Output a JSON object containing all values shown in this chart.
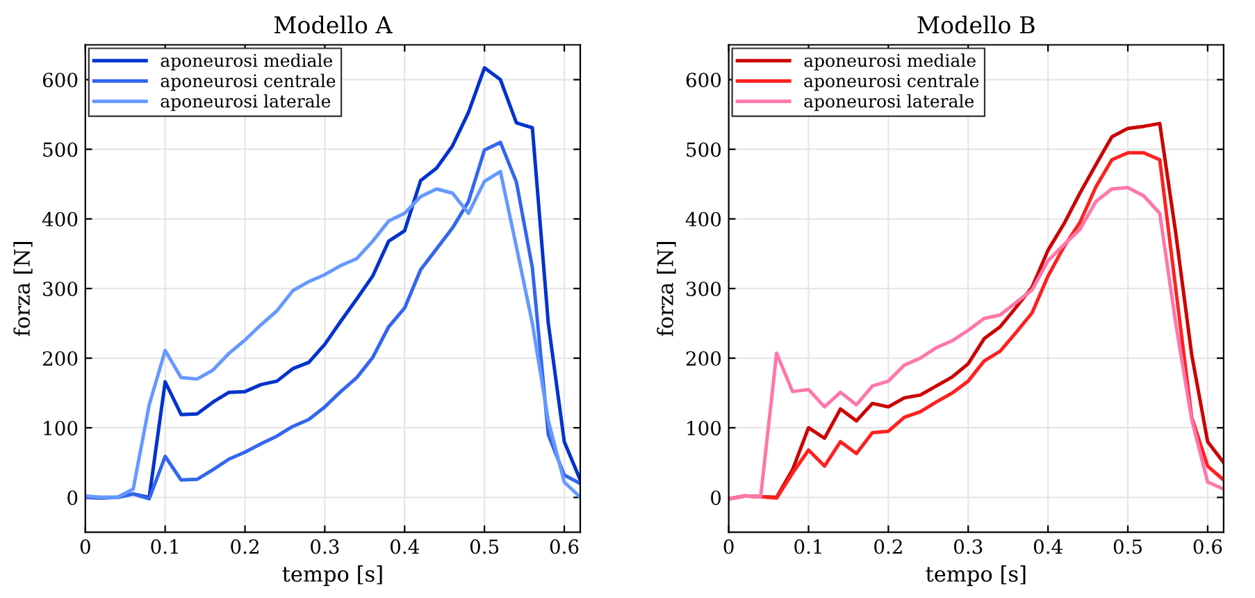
{
  "chart_data": [
    {
      "type": "line",
      "title": "Modello A",
      "xlabel": "tempo [s]",
      "ylabel": "forza [N]",
      "x": [
        0,
        0.02,
        0.04,
        0.06,
        0.08,
        0.1,
        0.12,
        0.14,
        0.16,
        0.18,
        0.2,
        0.22,
        0.24,
        0.26,
        0.28,
        0.3,
        0.32,
        0.34,
        0.36,
        0.38,
        0.4,
        0.42,
        0.44,
        0.46,
        0.48,
        0.5,
        0.52,
        0.54,
        0.56,
        0.58,
        0.6,
        0.62
      ],
      "series": [
        {
          "name": "aponeurosi mediale",
          "color": "#0033cc",
          "values": [
            0,
            -1,
            0,
            5,
            0,
            166,
            119,
            120,
            137,
            151,
            152,
            162,
            167,
            185,
            194,
            220,
            253,
            285,
            318,
            368,
            383,
            455,
            473,
            505,
            553,
            617,
            600,
            538,
            531,
            250,
            80,
            25
          ]
        },
        {
          "name": "aponeurosi centrale",
          "color": "#3366ee",
          "values": [
            0,
            0,
            0,
            5,
            -2,
            59,
            25,
            26,
            40,
            55,
            65,
            77,
            88,
            102,
            112,
            130,
            152,
            172,
            201,
            245,
            272,
            327,
            357,
            387,
            425,
            499,
            510,
            453,
            330,
            90,
            32,
            20
          ]
        },
        {
          "name": "aponeurosi laterale",
          "color": "#6699ff",
          "values": [
            2,
            0,
            0,
            12,
            133,
            211,
            172,
            170,
            183,
            207,
            226,
            248,
            268,
            297,
            310,
            320,
            333,
            343,
            368,
            397,
            408,
            432,
            443,
            437,
            408,
            454,
            468,
            360,
            250,
            110,
            22,
            0
          ]
        }
      ],
      "xlim": [
        0,
        0.62
      ],
      "ylim": [
        -50,
        650
      ],
      "xticks": [
        0,
        0.1,
        0.2,
        0.3,
        0.4,
        0.5,
        0.6
      ],
      "yticks": [
        0,
        100,
        200,
        300,
        400,
        500,
        600
      ],
      "grid": true,
      "legend": "top left",
      "marker": "none",
      "line_style": "solid"
    },
    {
      "type": "line",
      "title": "Modello B",
      "xlabel": "tempo [s]",
      "ylabel": "forza [N]",
      "x": [
        0,
        0.02,
        0.04,
        0.06,
        0.08,
        0.1,
        0.12,
        0.14,
        0.16,
        0.18,
        0.2,
        0.22,
        0.24,
        0.26,
        0.28,
        0.3,
        0.32,
        0.34,
        0.36,
        0.38,
        0.4,
        0.42,
        0.44,
        0.46,
        0.48,
        0.5,
        0.52,
        0.54,
        0.56,
        0.58,
        0.6,
        0.62
      ],
      "series": [
        {
          "name": "aponeurosi mediale",
          "color": "#cc0000",
          "values": [
            -2,
            2,
            1,
            0,
            40,
            100,
            85,
            127,
            110,
            135,
            130,
            143,
            147,
            160,
            173,
            192,
            228,
            245,
            273,
            302,
            355,
            393,
            437,
            478,
            518,
            530,
            533,
            537,
            380,
            205,
            80,
            50
          ]
        },
        {
          "name": "aponeurosi centrale",
          "color": "#ff2020",
          "values": [
            -2,
            2,
            1,
            -1,
            35,
            68,
            45,
            80,
            63,
            93,
            95,
            115,
            123,
            137,
            150,
            167,
            196,
            210,
            237,
            265,
            318,
            360,
            395,
            446,
            485,
            495,
            495,
            485,
            300,
            115,
            45,
            25
          ]
        },
        {
          "name": "aponeurosi laterale",
          "color": "#ff77aa",
          "values": [
            -2,
            2,
            1,
            207,
            152,
            155,
            130,
            151,
            133,
            160,
            167,
            190,
            200,
            215,
            225,
            240,
            257,
            262,
            280,
            298,
            340,
            363,
            385,
            425,
            443,
            445,
            433,
            408,
            250,
            112,
            22,
            12
          ]
        }
      ],
      "xlim": [
        0,
        0.62
      ],
      "ylim": [
        -50,
        650
      ],
      "xticks": [
        0,
        0.1,
        0.2,
        0.3,
        0.4,
        0.5,
        0.6
      ],
      "yticks": [
        0,
        100,
        200,
        300,
        400,
        500,
        600
      ],
      "grid": true,
      "legend": "top left",
      "marker": "none",
      "line_style": "solid"
    }
  ]
}
